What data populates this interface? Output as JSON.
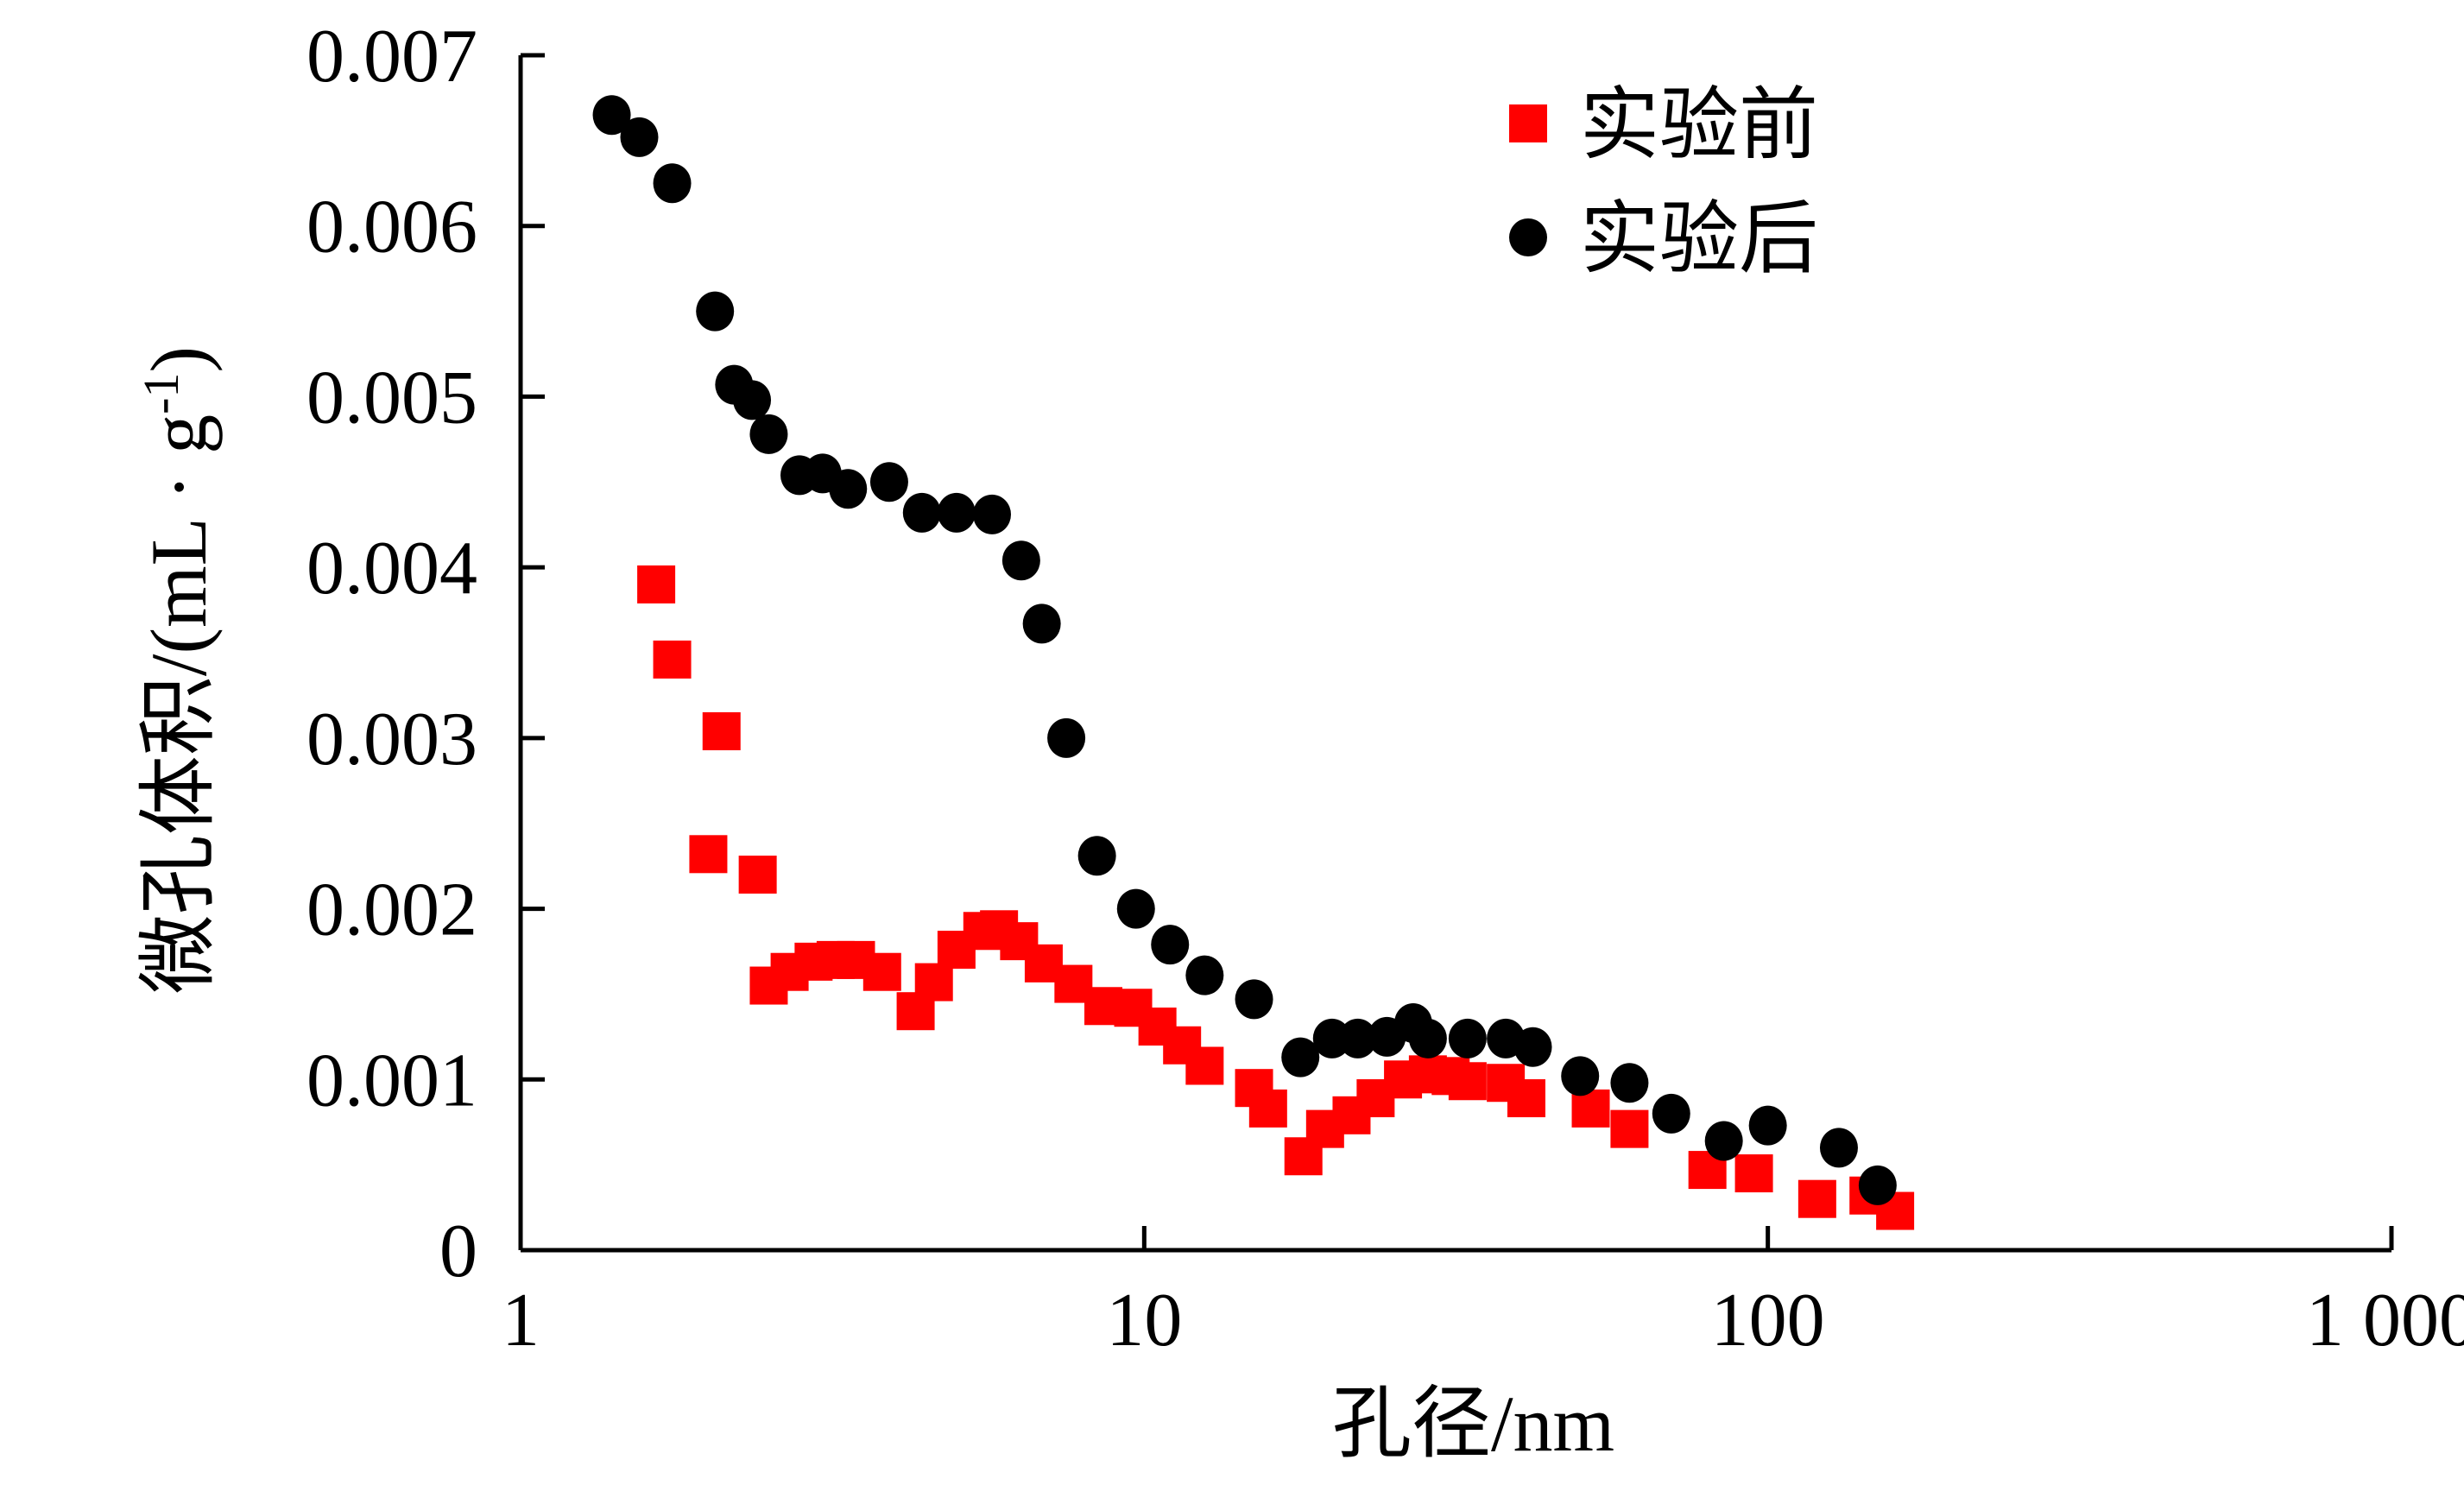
{
  "chart_data": {
    "type": "scatter",
    "x_scale": "log",
    "xlim": [
      1,
      1000
    ],
    "ylim": [
      0,
      0.007
    ],
    "xlabel": "孔径/nm",
    "ylabel": "微孔体积/(mL · g",
    "ylabel_sup": "-1",
    "ylabel_close": ")",
    "x_ticks": [
      1,
      10,
      100,
      1000
    ],
    "x_tick_labels": [
      "1",
      "10",
      "100",
      "1 000"
    ],
    "y_ticks": [
      0,
      0.001,
      0.002,
      0.003,
      0.004,
      0.005,
      0.006,
      0.007
    ],
    "y_tick_labels": [
      "0",
      "0.001",
      "0.002",
      "0.003",
      "0.004",
      "0.005",
      "0.006",
      "0.007"
    ],
    "grid": false,
    "legend_position": "top-right",
    "series": [
      {
        "name": "实验前",
        "marker": "square",
        "color": "#ff0000",
        "x": [
          1.65,
          1.75,
          2.1,
          2.0,
          2.4,
          2.5,
          2.7,
          2.95,
          3.2,
          3.45,
          3.8,
          4.3,
          4.6,
          5.0,
          5.5,
          5.85,
          6.3,
          6.9,
          7.7,
          8.6,
          9.6,
          10.5,
          11.5,
          12.5,
          15.0,
          15.8,
          18.0,
          19.5,
          21.5,
          23.5,
          26.0,
          28.5,
          31.0,
          33.0,
          38.0,
          41.0,
          52.0,
          60.0,
          80.0,
          95.0,
          120.0,
          145.0,
          160.0
        ],
        "y": [
          0.0039,
          0.00346,
          0.00304,
          0.00232,
          0.0022,
          0.00155,
          0.00163,
          0.00169,
          0.0017,
          0.0017,
          0.00163,
          0.0014,
          0.00157,
          0.00176,
          0.00187,
          0.00188,
          0.00181,
          0.00168,
          0.00156,
          0.00143,
          0.00142,
          0.00131,
          0.0012,
          0.00108,
          0.00095,
          0.00083,
          0.00055,
          0.00071,
          0.00079,
          0.00089,
          0.001,
          0.00103,
          0.00102,
          0.00099,
          0.00098,
          0.00089,
          0.00083,
          0.00071,
          0.00047,
          0.00045,
          0.0003,
          0.00032,
          0.00023
        ]
      },
      {
        "name": "实验后",
        "marker": "circle",
        "color": "#000000",
        "x": [
          1.4,
          1.55,
          1.75,
          2.05,
          2.2,
          2.35,
          2.5,
          2.8,
          3.05,
          3.35,
          3.9,
          4.4,
          5.0,
          5.7,
          6.35,
          6.85,
          7.5,
          8.4,
          9.7,
          11.0,
          12.5,
          15.0,
          17.8,
          20.0,
          22.0,
          24.5,
          27.0,
          28.5,
          33.0,
          38.0,
          42.0,
          50.0,
          60.0,
          70.0,
          85.0,
          100.0,
          130.0,
          150.0
        ],
        "y": [
          0.00665,
          0.00652,
          0.00625,
          0.0055,
          0.00507,
          0.00498,
          0.00478,
          0.00454,
          0.00455,
          0.00446,
          0.0045,
          0.00432,
          0.00432,
          0.00431,
          0.00404,
          0.00367,
          0.003,
          0.00231,
          0.002,
          0.00179,
          0.00161,
          0.00147,
          0.00113,
          0.00124,
          0.00124,
          0.00125,
          0.00133,
          0.00124,
          0.00124,
          0.00124,
          0.00119,
          0.00102,
          0.00098,
          0.0008,
          0.00064,
          0.00073,
          0.0006,
          0.00038
        ]
      }
    ]
  }
}
